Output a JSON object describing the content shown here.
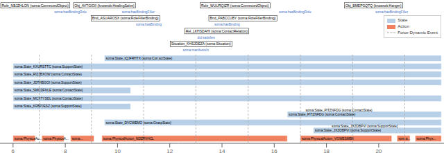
{
  "chart_data": {
    "type": "gantt",
    "orientation": "horizontal",
    "xlim": [
      5.5,
      22.5
    ],
    "xticks": [
      6,
      8,
      10,
      12,
      14,
      16,
      18,
      20
    ],
    "legend": "upper right",
    "series": [
      {
        "name": "State",
        "color": "#b8cfe8",
        "values": [
          {
            "label": "soma:State_IQJFRHTX (soma:Con:actState)",
            "y": 10,
            "start": 9.5,
            "end": 22.4
          },
          {
            "label": "soma:State_KXURSTTC (soma:SupportState)",
            "y": 9,
            "start": 6.0,
            "end": 22.4
          },
          {
            "label": "soma:State_RIZJBXOW (soma:ContactState)",
            "y": 8,
            "start": 6.0,
            "end": 22.4
          },
          {
            "label": "soma:State_JDTHBGOI (soma:SupportState)",
            "y": 7,
            "start": 6.0,
            "end": 22.4
          },
          {
            "label": "soma:State_SMCDFNLE (soma:ContactState)",
            "y": 6,
            "start": 6.0,
            "end": 10.5
          },
          {
            "label": "soma:State_MCXTYSDL (soma:ContactState)",
            "y": 5,
            "start": 6.0,
            "end": 22.4
          },
          {
            "label": "soma:State_KFBPJESZ (soma:SupportState)",
            "y": 4,
            "start": 6.0,
            "end": 10.5
          },
          {
            "label": "soma:State_PITZNFDG (soma:ContactState)",
            "y": 3,
            "start": 16.5,
            "end": 22.4
          },
          {
            "label": "soma:State_DVCWEMO (soma:GraspState)",
            "y": 2,
            "start": 9.5,
            "end": 22.4
          },
          {
            "label": "soma:State_JXZDBPVI (soma:SupportState)",
            "y": 1,
            "start": 17.5,
            "end": 22.4
          }
        ]
      },
      {
        "name": "Action",
        "color": "#f08060",
        "values": [
          {
            "label": "soma:PhysicaAc...",
            "y": 0,
            "start": 6.0,
            "end": 6.85
          },
          {
            "label": "soma:PhysicsA...",
            "y": 0,
            "start": 7.1,
            "end": 7.95
          },
          {
            "label": "soma...",
            "y": 0,
            "start": 8.2,
            "end": 9.1
          },
          {
            "label": "soma:PhysicalAction_NDZRVHCL",
            "y": 0,
            "start": 9.4,
            "end": 16.5
          },
          {
            "label": "soma:PhysicalAction_VGWESMBK",
            "y": 0,
            "start": 17.0,
            "end": 20.5
          },
          {
            "label": "som:a...",
            "y": 0,
            "start": 20.7,
            "end": 21.2
          },
          {
            "label": "soma:Phys...",
            "y": 0,
            "start": 21.4,
            "end": 22.4
          }
        ]
      },
      {
        "name": "Force-Dynamic Event",
        "color": "#aaaaaa",
        "line_style": "dashed",
        "x": [
          7,
          9,
          11,
          13,
          15,
          17,
          19,
          21
        ]
      }
    ],
    "annotations": [
      {
        "items": [
          {
            "text": "Role_NBJZHLON (soma:ConnectedObject)",
            "x": 6.2
          },
          {
            "text": "Obj_AVTGIOII (knowrob:HealingSalve)",
            "x": 9.5
          },
          {
            "text": "Role_WUURQIZR (soma:ConnectedObject)",
            "x": 14.5
          },
          {
            "text": "Obj_BMEPGQTQ (knowrob:Hanger)",
            "x": 19.8
          }
        ]
      },
      {
        "color": "#4472c4",
        "items": [
          {
            "text": "soma:hasBindingRole",
            "x": 8.2
          },
          {
            "text": "soma:hasBindingFiller",
            "x": 10.8
          },
          {
            "text": "soma:hasBindingRole",
            "x": 16.8
          },
          {
            "text": "soma:hasBindingFiller",
            "x": 20.5
          }
        ]
      },
      {
        "items": [
          {
            "text": "Bnd_ASUAROSX (soma:RoleFillerBinding)",
            "x": 10.3
          },
          {
            "text": "Bnd_PABCCUBY (soma:RoleFillerBinding)",
            "x": 14.8
          }
        ]
      },
      {
        "color": "#4472c4",
        "items": [
          {
            "text": "soma:hasBinding",
            "x": 11.2
          },
          {
            "text": "soma:hasBinding",
            "x": 14.2
          }
        ]
      },
      {
        "items": [
          {
            "text": "Rel_LKHSDAHI (soma:ContactRelation)",
            "x": 13.8
          }
        ]
      },
      {
        "color": "#4472c4",
        "items": [
          {
            "text": "dul:satisfies",
            "x": 13.4
          }
        ]
      },
      {
        "items": [
          {
            "text": "Situation_KHSJDEZA (soma:Situation)",
            "x": 13.2
          }
        ]
      },
      {
        "color": "#4472c4",
        "items": [
          {
            "text": "soma:manifestsIn",
            "x": 13.0
          }
        ]
      }
    ],
    "callouts": [
      {
        "text": "soma:State_PITZNFDG (soma:ContactState)",
        "x": 17.2,
        "y": 3.5
      },
      {
        "text": "soma:State_JXZDBPVI (soma:SupportState)",
        "x": 18.2,
        "y": 1.5
      }
    ]
  }
}
